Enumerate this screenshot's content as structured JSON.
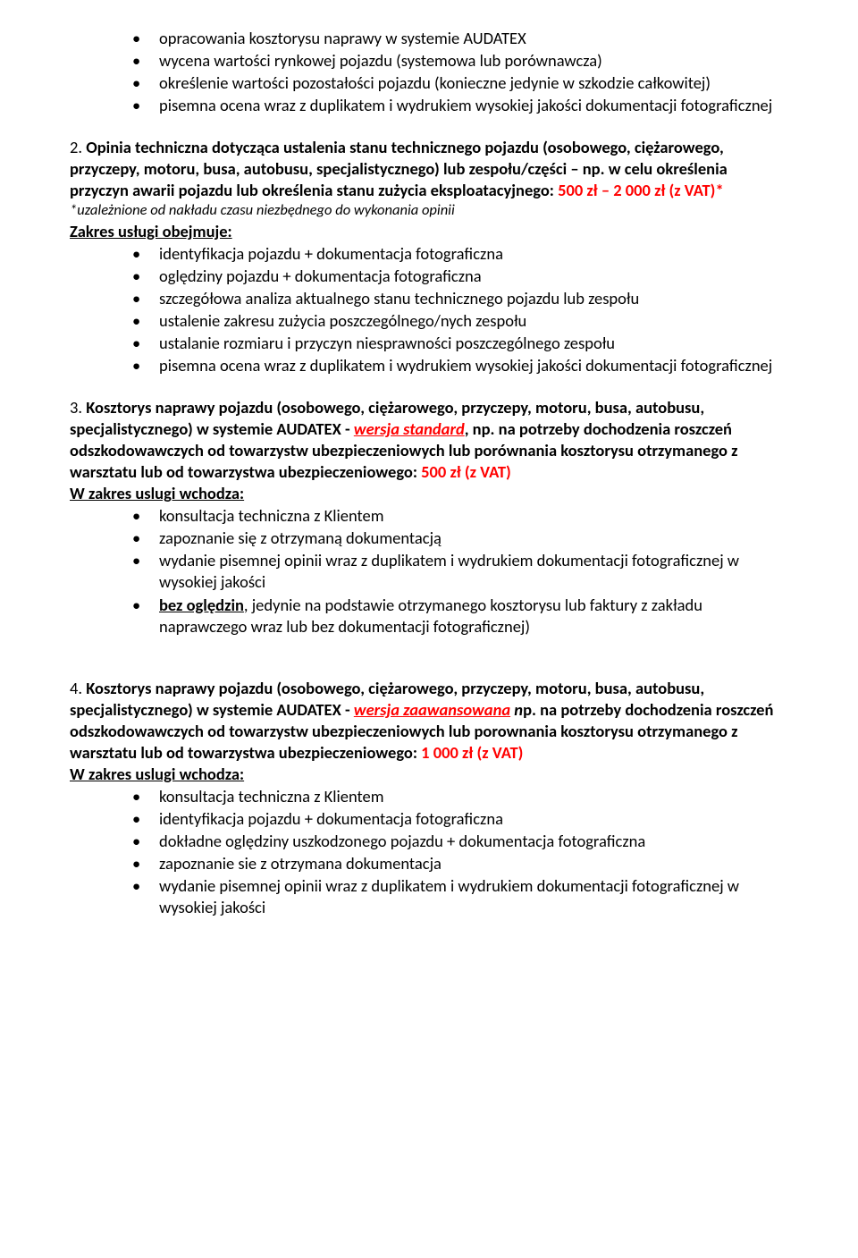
{
  "colors": {
    "text": "#000000",
    "price": "#ff0000",
    "background": "#ffffff"
  },
  "typography": {
    "family": "Calibri, Segoe UI, Arial, sans-serif",
    "base_pt": 14,
    "footnote_pt": 12,
    "line_height": 1.3
  },
  "top_bullets": [
    "opracowania kosztorysu naprawy w systemie AUDATEX",
    "wycena wartości rynkowej pojazdu (systemowa lub porównawcza)",
    "określenie wartości pozostałości pojazdu (konieczne jedynie w szkodzie całkowitej)",
    "pisemna ocena wraz z duplikatem i wydrukiem wysokiej jakości dokumentacji fotograficznej"
  ],
  "section2": {
    "lead_num": "2. ",
    "lead_bold": "Opinia techniczna dotycząca ustalenia stanu technicznego pojazdu (osobowego, ciężarowego, przyczepy, motoru, busa, autobusu, specjalistycznego) lub zespołu/części – np. w celu określenia przyczyn awarii pojazdu lub określenia stanu zużycia eksploatacyjnego: ",
    "price": "500 zł – 2 000 zł (z VAT)*",
    "footnote": "*uzależnione od nakładu czasu niezbędnego do wykonania opinii",
    "scope_label": "Zakres usługi obejmuje:",
    "bullets": [
      "identyfikacja pojazdu + dokumentacja fotograficzna",
      "oględziny pojazdu + dokumentacja fotograficzna",
      "szczegółowa analiza aktualnego stanu technicznego pojazdu lub zespołu",
      "ustalenie zakresu zużycia poszczególnego/nych zespołu",
      "ustalanie rozmiaru i przyczyn niesprawności poszczególnego zespołu",
      "pisemna ocena wraz z duplikatem i wydrukiem wysokiej jakości dokumentacji fotograficznej"
    ]
  },
  "section3": {
    "lead_num": "3. ",
    "lead_part1": "Kosztorys naprawy pojazdu (osobowego, ciężarowego, przyczepy, motoru, busa, autobusu, specjalistycznego) w systemie AUDATEX  - ",
    "version_label": "wersja standard",
    "lead_part2": ", np. na potrzeby dochodzenia roszczeń odszkodowawczych od towarzystw ubezpieczeniowych lub porównania kosztorysu otrzymanego z warsztatu lub od towarzystwa ubezpieczeniowego: ",
    "price": "500 zł (z VAT)",
    "scope_label": "W zakres uslugi wchodza:",
    "bullets": [
      {
        "pre": "",
        "underlined": "",
        "text": "konsultacja techniczna z Klientem"
      },
      {
        "pre": "",
        "underlined": "",
        "text": "zapoznanie się z otrzymaną dokumentacją"
      },
      {
        "pre": "",
        "underlined": "",
        "text": "wydanie pisemnej opinii wraz z duplikatem i wydrukiem dokumentacji fotograficznej w wysokiej jakości"
      },
      {
        "pre": " ",
        "underlined": "bez oględzin",
        "text": ", jedynie na podstawie otrzymanego kosztorysu lub faktury z zakładu naprawczego wraz lub bez dokumentacji fotograficznej)"
      }
    ]
  },
  "section4": {
    "lead_num": "4. ",
    "lead_part1": "Kosztorys naprawy pojazdu (osobowego, ciężarowego, przyczepy, motoru, busa, autobusu, specjalistycznego) w systemie AUDATEX - ",
    "version_label": "wersja zaawansowana",
    "lead_part2_italic": " n",
    "lead_part2_rest": "p. na potrzeby dochodzenia roszczeń odszkodowawczych od towarzystw ubezpieczeniowych lub porownania kosztorysu otrzymanego z warsztatu lub od towarzystwa ubezpieczeniowego: ",
    "price": "1 000 zł (z VAT)",
    "scope_label": "W zakres uslugi wchodza:",
    "bullets": [
      "konsultacja techniczna z Klientem",
      "identyfikacja pojazdu + dokumentacja fotograficzna",
      "dokładne oględziny uszkodzonego pojazdu + dokumentacja fotograficzna",
      "zapoznanie sie z otrzymana dokumentacja",
      "wydanie pisemnej opinii wraz z duplikatem i wydrukiem dokumentacji fotograficznej w wysokiej jakości"
    ]
  }
}
